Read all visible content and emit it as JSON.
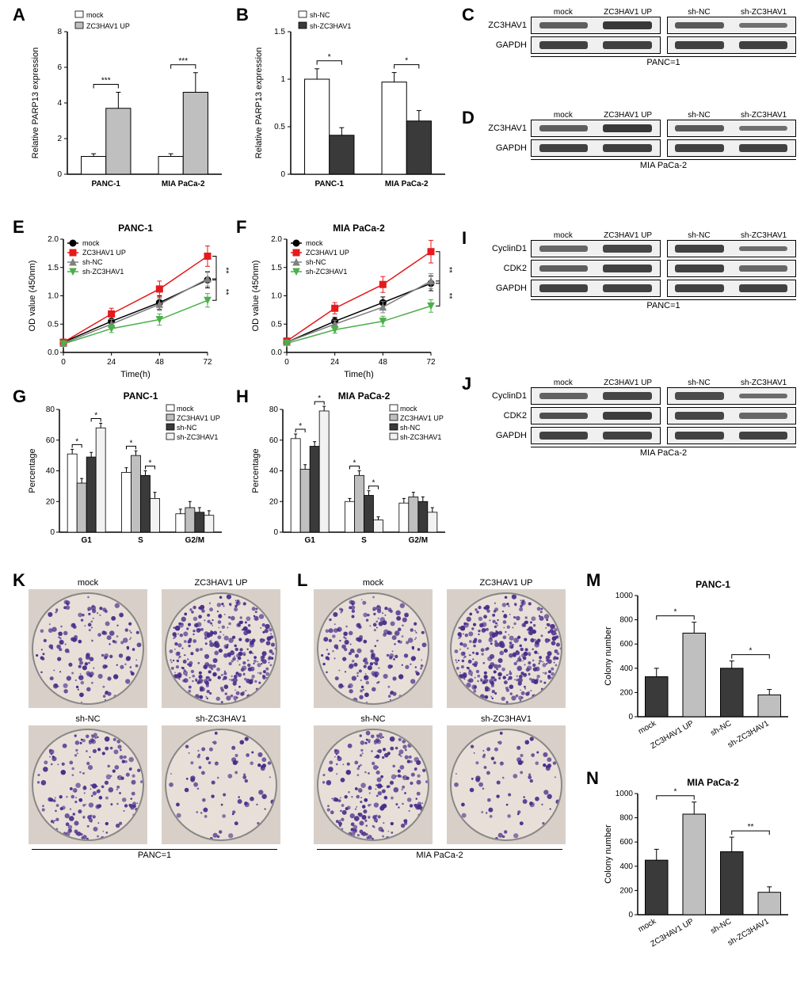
{
  "palette": {
    "white": "#ffffff",
    "black": "#000000",
    "gray_light": "#bfbfbf",
    "gray_dark": "#3a3a3a",
    "red": "#e41a1c",
    "green": "#4daf4a",
    "blue_gray": "#808080"
  },
  "panelA": {
    "label": "A",
    "ylabel": "Relative PARP13 expression",
    "ylim": [
      0,
      8
    ],
    "ytick_step": 2,
    "categories": [
      "PANC-1",
      "MIA PaCa-2"
    ],
    "legend": [
      "mock",
      "ZC3HAV1 UP"
    ],
    "series": [
      {
        "name": "mock",
        "color": "#ffffff",
        "values": [
          1.0,
          1.0
        ],
        "err": [
          0.15,
          0.15
        ]
      },
      {
        "name": "ZC3HAV1 UP",
        "color": "#bfbfbf",
        "values": [
          3.7,
          4.6
        ],
        "err": [
          0.9,
          1.1
        ]
      }
    ],
    "significance": [
      {
        "group": 0,
        "label": "***"
      },
      {
        "group": 1,
        "label": "***"
      }
    ],
    "bar_width": 0.35,
    "title_fontsize": 11
  },
  "panelB": {
    "label": "B",
    "ylabel": "Relative PARP13 expression",
    "ylim": [
      0,
      1.5
    ],
    "ytick_step": 0.5,
    "categories": [
      "PANC-1",
      "MIA PaCa-2"
    ],
    "legend": [
      "sh-NC",
      "sh-ZC3HAV1"
    ],
    "series": [
      {
        "name": "sh-NC",
        "color": "#ffffff",
        "values": [
          1.0,
          0.97
        ],
        "err": [
          0.11,
          0.1
        ]
      },
      {
        "name": "sh-ZC3HAV1",
        "color": "#3a3a3a",
        "values": [
          0.41,
          0.56
        ],
        "err": [
          0.08,
          0.11
        ]
      }
    ],
    "significance": [
      {
        "group": 0,
        "label": "*"
      },
      {
        "group": 1,
        "label": "*"
      }
    ],
    "bar_width": 0.35
  },
  "panelC": {
    "label": "C",
    "lanes_left": [
      "mock",
      "ZC3HAV1 UP"
    ],
    "lanes_right": [
      "sh-NC",
      "sh-ZC3HAV1"
    ],
    "rows": [
      "ZC3HAV1",
      "GAPDH"
    ],
    "band_intensity": {
      "ZC3HAV1": [
        0.55,
        0.95,
        0.6,
        0.35
      ],
      "GAPDH": [
        0.85,
        0.85,
        0.85,
        0.85
      ]
    },
    "cell_line": "PANC=1"
  },
  "panelD": {
    "label": "D",
    "lanes_left": [
      "mock",
      "ZC3HAV1 UP"
    ],
    "lanes_right": [
      "sh-NC",
      "sh-ZC3HAV1"
    ],
    "rows": [
      "ZC3HAV1",
      "GAPDH"
    ],
    "band_intensity": {
      "ZC3HAV1": [
        0.55,
        0.95,
        0.6,
        0.38
      ],
      "GAPDH": [
        0.85,
        0.88,
        0.85,
        0.85
      ]
    },
    "cell_line": "MIA PaCa-2"
  },
  "panelE": {
    "label": "E",
    "title": "PANC-1",
    "xlabel": "Time(h)",
    "ylabel": "OD value (450nm)",
    "xlim": [
      0,
      72
    ],
    "xtick_step": 24,
    "x_values": [
      0,
      24,
      48,
      72
    ],
    "ylim": [
      0,
      2.0
    ],
    "ytick_step": 0.5,
    "series": [
      {
        "name": "mock",
        "color": "#000000",
        "marker": "circle",
        "values": [
          0.18,
          0.55,
          0.88,
          1.28
        ],
        "err": [
          0.03,
          0.08,
          0.12,
          0.14
        ]
      },
      {
        "name": "ZC3HAV1 UP",
        "color": "#e41a1c",
        "marker": "square",
        "values": [
          0.18,
          0.68,
          1.12,
          1.7
        ],
        "err": [
          0.03,
          0.1,
          0.14,
          0.18
        ]
      },
      {
        "name": "sh-NC",
        "color": "#808080",
        "marker": "triangle-up",
        "values": [
          0.16,
          0.5,
          0.85,
          1.3
        ],
        "err": [
          0.03,
          0.08,
          0.11,
          0.13
        ]
      },
      {
        "name": "sh-ZC3HAV1",
        "color": "#4daf4a",
        "marker": "triangle-down",
        "values": [
          0.15,
          0.42,
          0.58,
          0.92
        ],
        "err": [
          0.03,
          0.07,
          0.1,
          0.12
        ]
      }
    ],
    "sig_right": [
      {
        "between": [
          "ZC3HAV1 UP",
          "mock"
        ],
        "label": "**"
      },
      {
        "between": [
          "sh-NC",
          "sh-ZC3HAV1"
        ],
        "label": "**"
      }
    ]
  },
  "panelF": {
    "label": "F",
    "title": "MIA PaCa-2",
    "xlabel": "Time(h)",
    "ylabel": "OD value (450nm)",
    "xlim": [
      0,
      72
    ],
    "xtick_step": 24,
    "x_values": [
      0,
      24,
      48,
      72
    ],
    "ylim": [
      0,
      2.0
    ],
    "ytick_step": 0.5,
    "series": [
      {
        "name": "mock",
        "color": "#000000",
        "marker": "circle",
        "values": [
          0.18,
          0.55,
          0.88,
          1.22
        ],
        "err": [
          0.03,
          0.07,
          0.1,
          0.13
        ]
      },
      {
        "name": "ZC3HAV1 UP",
        "color": "#e41a1c",
        "marker": "square",
        "values": [
          0.2,
          0.78,
          1.2,
          1.78
        ],
        "err": [
          0.03,
          0.1,
          0.14,
          0.2
        ]
      },
      {
        "name": "sh-NC",
        "color": "#808080",
        "marker": "triangle-up",
        "values": [
          0.18,
          0.5,
          0.8,
          1.26
        ],
        "err": [
          0.03,
          0.07,
          0.1,
          0.13
        ]
      },
      {
        "name": "sh-ZC3HAV1",
        "color": "#4daf4a",
        "marker": "triangle-down",
        "values": [
          0.16,
          0.4,
          0.55,
          0.82
        ],
        "err": [
          0.03,
          0.06,
          0.09,
          0.11
        ]
      }
    ],
    "sig_right": [
      {
        "between": [
          "ZC3HAV1 UP",
          "mock"
        ],
        "label": "**"
      },
      {
        "between": [
          "sh-NC",
          "sh-ZC3HAV1"
        ],
        "label": "**"
      }
    ]
  },
  "panelG": {
    "label": "G",
    "title": "PANC-1",
    "ylabel": "Percentage",
    "ylim": [
      0,
      80
    ],
    "ytick_step": 20,
    "categories": [
      "G1",
      "S",
      "G2/M"
    ],
    "legend": [
      "mock",
      "ZC3HAV1 UP",
      "sh-NC",
      "sh-ZC3HAV1"
    ],
    "series": [
      {
        "name": "mock",
        "color": "#ffffff",
        "values": [
          51,
          39,
          12
        ],
        "err": [
          3,
          3,
          3
        ]
      },
      {
        "name": "ZC3HAV1 UP",
        "color": "#bfbfbf",
        "values": [
          32,
          50,
          16
        ],
        "err": [
          3,
          3,
          4
        ]
      },
      {
        "name": "sh-NC",
        "color": "#3a3a3a",
        "values": [
          49,
          37,
          13
        ],
        "err": [
          3,
          3,
          3
        ]
      },
      {
        "name": "sh-ZC3HAV1",
        "color": "#f2f2f2",
        "values": [
          68,
          22,
          11
        ],
        "err": [
          3,
          4,
          3
        ]
      }
    ],
    "significance": [
      {
        "category": 0,
        "pair": [
          0,
          1
        ],
        "label": "*"
      },
      {
        "category": 0,
        "pair": [
          2,
          3
        ],
        "label": "*"
      },
      {
        "category": 1,
        "pair": [
          0,
          1
        ],
        "label": "*"
      },
      {
        "category": 1,
        "pair": [
          2,
          3
        ],
        "label": "*"
      }
    ]
  },
  "panelH": {
    "label": "H",
    "title": "MIA PaCa-2",
    "ylabel": "Percentage",
    "ylim": [
      0,
      80
    ],
    "ytick_step": 20,
    "categories": [
      "G1",
      "S",
      "G2/M"
    ],
    "legend": [
      "mock",
      "ZC3HAV1 UP",
      "sh-NC",
      "sh-ZC3HAV1"
    ],
    "series": [
      {
        "name": "mock",
        "color": "#ffffff",
        "values": [
          61,
          20,
          19
        ],
        "err": [
          3,
          2,
          3
        ]
      },
      {
        "name": "ZC3HAV1 UP",
        "color": "#bfbfbf",
        "values": [
          41,
          37,
          23
        ],
        "err": [
          3,
          3,
          3
        ]
      },
      {
        "name": "sh-NC",
        "color": "#3a3a3a",
        "values": [
          56,
          24,
          20
        ],
        "err": [
          3,
          3,
          3
        ]
      },
      {
        "name": "sh-ZC3HAV1",
        "color": "#f2f2f2",
        "values": [
          79,
          8,
          13
        ],
        "err": [
          3,
          2,
          3
        ]
      }
    ],
    "significance": [
      {
        "category": 0,
        "pair": [
          0,
          1
        ],
        "label": "*"
      },
      {
        "category": 0,
        "pair": [
          2,
          3
        ],
        "label": "*"
      },
      {
        "category": 1,
        "pair": [
          0,
          1
        ],
        "label": "*"
      },
      {
        "category": 1,
        "pair": [
          2,
          3
        ],
        "label": "*"
      }
    ]
  },
  "panelI": {
    "label": "I",
    "lanes_left": [
      "mock",
      "ZC3HAV1 UP"
    ],
    "lanes_right": [
      "sh-NC",
      "sh-ZC3HAV1"
    ],
    "rows": [
      "CyclinD1",
      "CDK2",
      "GAPDH"
    ],
    "band_intensity": {
      "CyclinD1": [
        0.45,
        0.8,
        0.85,
        0.4
      ],
      "CDK2": [
        0.55,
        0.85,
        0.85,
        0.45
      ],
      "GAPDH": [
        0.85,
        0.85,
        0.85,
        0.85
      ]
    },
    "cell_line": "PANC=1"
  },
  "panelJ": {
    "label": "J",
    "lanes_left": [
      "mock",
      "ZC3HAV1 UP"
    ],
    "lanes_right": [
      "sh-NC",
      "sh-ZC3HAV1"
    ],
    "rows": [
      "CyclinD1",
      "CDK2",
      "GAPDH"
    ],
    "band_intensity": {
      "CyclinD1": [
        0.5,
        0.8,
        0.75,
        0.4
      ],
      "CDK2": [
        0.7,
        0.9,
        0.8,
        0.45
      ],
      "GAPDH": [
        0.85,
        0.85,
        0.85,
        0.85
      ]
    },
    "cell_line": "MIA PaCa-2"
  },
  "panelK": {
    "label": "K",
    "conditions": [
      "mock",
      "ZC3HAV1 UP",
      "sh-NC",
      "sh-ZC3HAV1"
    ],
    "colony_density": [
      0.35,
      0.75,
      0.4,
      0.18
    ],
    "cell_line": "PANC=1",
    "dot_color": "#4a2d8a",
    "dish_bg": "#e8e0d8"
  },
  "panelL": {
    "label": "L",
    "conditions": [
      "mock",
      "ZC3HAV1 UP",
      "sh-NC",
      "sh-ZC3HAV1"
    ],
    "colony_density": [
      0.45,
      0.8,
      0.5,
      0.18
    ],
    "cell_line": "MIA PaCa-2",
    "dot_color": "#4a2d8a",
    "dish_bg": "#e8e0d8"
  },
  "panelM": {
    "label": "M",
    "title": "PANC-1",
    "ylabel": "Colony number",
    "ylim": [
      0,
      1000
    ],
    "ytick_step": 200,
    "categories": [
      "mock",
      "ZC3HAV1 UP",
      "sh-NC",
      "sh-ZC3HAV1"
    ],
    "series": [
      {
        "colors": [
          "#3a3a3a",
          "#bfbfbf",
          "#3a3a3a",
          "#bfbfbf"
        ],
        "values": [
          330,
          690,
          400,
          180
        ],
        "err": [
          70,
          90,
          60,
          45
        ]
      }
    ],
    "significance": [
      {
        "pair": [
          0,
          1
        ],
        "label": "*"
      },
      {
        "pair": [
          2,
          3
        ],
        "label": "*"
      }
    ]
  },
  "panelN": {
    "label": "N",
    "title": "MIA PaCa-2",
    "ylabel": "Colony number",
    "ylim": [
      0,
      1000
    ],
    "ytick_step": 200,
    "categories": [
      "mock",
      "ZC3HAV1 UP",
      "sh-NC",
      "sh-ZC3HAV1"
    ],
    "series": [
      {
        "colors": [
          "#3a3a3a",
          "#bfbfbf",
          "#3a3a3a",
          "#bfbfbf"
        ],
        "values": [
          450,
          830,
          520,
          185
        ],
        "err": [
          90,
          100,
          120,
          45
        ]
      }
    ],
    "significance": [
      {
        "pair": [
          0,
          1
        ],
        "label": "*"
      },
      {
        "pair": [
          2,
          3
        ],
        "label": "**"
      }
    ]
  }
}
